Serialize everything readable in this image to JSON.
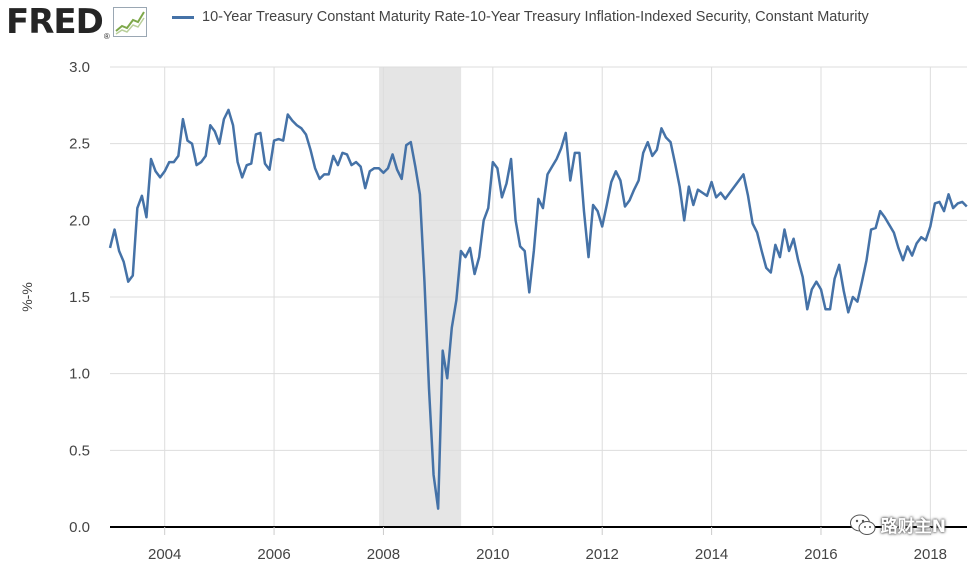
{
  "header": {
    "logo_text": "FRED",
    "logo_registered": "®"
  },
  "watermark": {
    "text": "路财主N"
  },
  "chart_data": {
    "type": "line",
    "title": "",
    "legend": [
      "10-Year Treasury Constant Maturity Rate-10-Year Treasury Inflation-Indexed Security, Constant Maturity"
    ],
    "legend_position": "top",
    "xlabel": "",
    "ylabel": "%-%",
    "xlim": [
      2003.0,
      2018.67
    ],
    "ylim": [
      0.0,
      3.0
    ],
    "grid": true,
    "x_ticks": [
      2004,
      2006,
      2008,
      2010,
      2012,
      2014,
      2016,
      2018
    ],
    "x_tick_labels": [
      "2004",
      "2006",
      "2008",
      "2010",
      "2012",
      "2014",
      "2016",
      "2018"
    ],
    "y_ticks": [
      0.0,
      0.5,
      1.0,
      1.5,
      2.0,
      2.5,
      3.0
    ],
    "y_tick_labels": [
      "0.0",
      "0.5",
      "1.0",
      "1.5",
      "2.0",
      "2.5",
      "3.0"
    ],
    "recession_shading": [
      [
        2007.92,
        2009.42
      ]
    ],
    "colors": {
      "line": "#4572a7",
      "recession": "#e5e5e5",
      "grid": "#dddddd",
      "axis": "#000000"
    },
    "series": [
      {
        "name": "10-Year Treasury Constant Maturity Rate-10-Year Treasury Inflation-Indexed Security, Constant Maturity",
        "start_year": 2003.0,
        "step": 0.08333,
        "values": [
          1.82,
          1.94,
          1.8,
          1.73,
          1.6,
          1.64,
          2.08,
          2.16,
          2.02,
          2.4,
          2.32,
          2.28,
          2.32,
          2.38,
          2.38,
          2.42,
          2.66,
          2.52,
          2.5,
          2.36,
          2.38,
          2.42,
          2.62,
          2.58,
          2.5,
          2.66,
          2.72,
          2.62,
          2.38,
          2.28,
          2.36,
          2.37,
          2.56,
          2.57,
          2.37,
          2.33,
          2.52,
          2.53,
          2.52,
          2.69,
          2.65,
          2.62,
          2.6,
          2.56,
          2.46,
          2.34,
          2.27,
          2.3,
          2.3,
          2.42,
          2.36,
          2.44,
          2.43,
          2.36,
          2.38,
          2.35,
          2.21,
          2.32,
          2.34,
          2.34,
          2.31,
          2.34,
          2.43,
          2.33,
          2.27,
          2.49,
          2.51,
          2.35,
          2.17,
          1.6,
          0.9,
          0.34,
          0.12,
          1.15,
          0.97,
          1.3,
          1.48,
          1.8,
          1.76,
          1.82,
          1.65,
          1.76,
          2.0,
          2.08,
          2.38,
          2.34,
          2.15,
          2.24,
          2.4,
          2.0,
          1.83,
          1.8,
          1.53,
          1.8,
          2.14,
          2.08,
          2.3,
          2.35,
          2.4,
          2.47,
          2.57,
          2.26,
          2.44,
          2.44,
          2.06,
          1.76,
          2.1,
          2.06,
          1.96,
          2.1,
          2.25,
          2.32,
          2.26,
          2.09,
          2.13,
          2.2,
          2.26,
          2.44,
          2.51,
          2.42,
          2.46,
          2.6,
          2.54,
          2.51,
          2.37,
          2.22,
          2.0,
          2.22,
          2.1,
          2.2,
          2.18,
          2.16,
          2.25,
          2.15,
          2.18,
          2.14,
          2.18,
          2.22,
          2.26,
          2.3,
          2.16,
          1.98,
          1.92,
          1.8,
          1.69,
          1.66,
          1.84,
          1.76,
          1.94,
          1.8,
          1.88,
          1.74,
          1.63,
          1.42,
          1.55,
          1.6,
          1.55,
          1.42,
          1.42,
          1.62,
          1.71,
          1.54,
          1.4,
          1.5,
          1.47,
          1.6,
          1.74,
          1.94,
          1.95,
          2.06,
          2.02,
          1.97,
          1.92,
          1.82,
          1.74,
          1.83,
          1.77,
          1.85,
          1.89,
          1.87,
          1.96,
          2.11,
          2.12,
          2.06,
          2.17,
          2.08,
          2.11,
          2.12,
          2.09
        ]
      }
    ]
  }
}
